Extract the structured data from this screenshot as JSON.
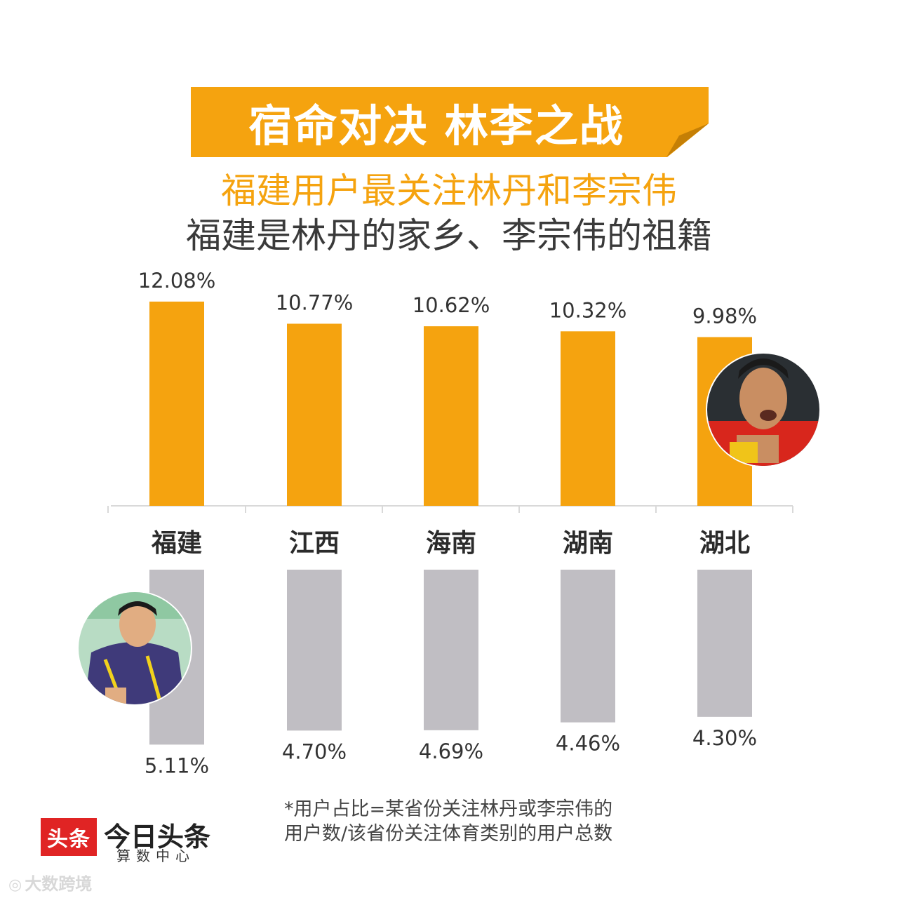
{
  "banner": {
    "title": "宿命对决 林李之战"
  },
  "subtitle_highlight": "福建用户最关注林丹和李宗伟",
  "subtitle": "福建是林丹的家乡、李宗伟的祖籍",
  "colors": {
    "accent": "#f5a30f",
    "secondary": "#c0bec3",
    "brand": "#e02424"
  },
  "chart_data": {
    "type": "bar",
    "categories": [
      "福建",
      "江西",
      "海南",
      "湖南",
      "湖北"
    ],
    "series": [
      {
        "values": [
          12.08,
          10.77,
          10.62,
          10.32,
          9.98
        ],
        "labels": [
          "12.08%",
          "10.77%",
          "10.62%",
          "10.32%",
          "9.98%"
        ],
        "color": "#f5a30f",
        "direction": "up"
      },
      {
        "values": [
          5.11,
          4.7,
          4.69,
          4.46,
          4.3
        ],
        "labels": [
          "5.11%",
          "4.70%",
          "4.69%",
          "4.46%",
          "4.30%"
        ],
        "color": "#c0bec3",
        "direction": "down"
      }
    ],
    "grid": false
  },
  "footnote": {
    "line1": "*用户占比=某省份关注林丹或李宗伟的",
    "line2": "用户数/该省份关注体育类别的用户总数"
  },
  "logo": {
    "box": "头条",
    "name": "今日头条",
    "sub": "算数中心"
  },
  "watermark": {
    "mark": "大数跨境"
  },
  "images": {
    "top_avatar": "林丹-photo",
    "bottom_avatar": "李宗伟-photo"
  }
}
